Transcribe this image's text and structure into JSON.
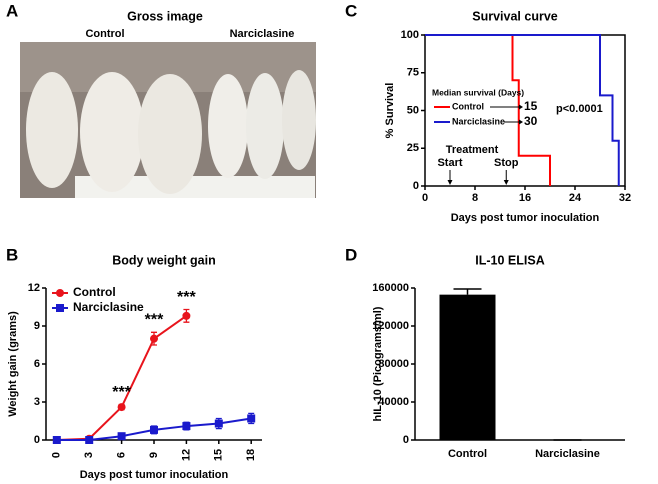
{
  "photo": {
    "label": "A",
    "title": "Gross image",
    "groups": [
      "Control",
      "Narciclasine"
    ]
  },
  "chart_data": [
    {
      "type": "step",
      "label": "C",
      "title": "Survival curve",
      "xlabel": "Days post tumor inoculation",
      "ylabel": "% Survival",
      "xlim": [
        0,
        32
      ],
      "xticks": [
        0,
        8,
        16,
        24,
        32
      ],
      "ylim": [
        0,
        100
      ],
      "yticks": [
        0,
        25,
        50,
        75,
        100
      ],
      "legend_title": "Median survival (Days)",
      "series": [
        {
          "name": "Control",
          "color": "#ff0000",
          "x": [
            0,
            14,
            15,
            20
          ],
          "values": [
            100,
            70,
            20,
            0
          ],
          "median": 15
        },
        {
          "name": "Narciclasine",
          "color": "#1a1acc",
          "x": [
            0,
            28,
            30,
            31
          ],
          "values": [
            100,
            60,
            30,
            0
          ],
          "median": 30
        }
      ],
      "p_value_label": "p<0.0001",
      "treatment": {
        "title": "Treatment",
        "start": "Start",
        "start_day": 4,
        "stop": "Stop",
        "stop_day": 13
      }
    },
    {
      "type": "line",
      "label": "B",
      "title": "Body weight gain",
      "xlabel": "Days post tumor inoculation",
      "ylabel": "Weight gain (grams)",
      "xlim": [
        -1,
        19
      ],
      "xticks": [
        0,
        3,
        6,
        9,
        12,
        15,
        18
      ],
      "ylim": [
        0,
        12
      ],
      "yticks": [
        0,
        3,
        6,
        9,
        12
      ],
      "legend": "upper left",
      "series": [
        {
          "name": "Control",
          "color": "#e8141c",
          "marker": "circle",
          "x": [
            0,
            3,
            6,
            9,
            12
          ],
          "values": [
            0,
            0.1,
            2.6,
            8.0,
            9.8
          ],
          "errors": [
            0,
            0.1,
            0.2,
            0.5,
            0.5
          ]
        },
        {
          "name": "Narciclasine",
          "color": "#1a1acc",
          "marker": "square",
          "x": [
            0,
            3,
            6,
            9,
            12,
            15,
            18
          ],
          "values": [
            0,
            0,
            0.3,
            0.8,
            1.1,
            1.3,
            1.7
          ],
          "errors": [
            0,
            0,
            0.2,
            0.3,
            0.3,
            0.4,
            0.4
          ]
        }
      ],
      "significance": {
        "label": "***",
        "x": [
          6,
          9,
          12
        ]
      }
    },
    {
      "type": "bar",
      "label": "D",
      "title": "IL-10 ELISA",
      "ylabel": "hIL-10 (Picograms/ml)",
      "categories": [
        "Control",
        "Narciclasine"
      ],
      "values": [
        153000,
        0
      ],
      "errors": [
        6000,
        0
      ],
      "color": "#000000",
      "ylim": [
        0,
        160000
      ],
      "yticks": [
        0,
        40000,
        80000,
        120000,
        160000
      ]
    }
  ]
}
